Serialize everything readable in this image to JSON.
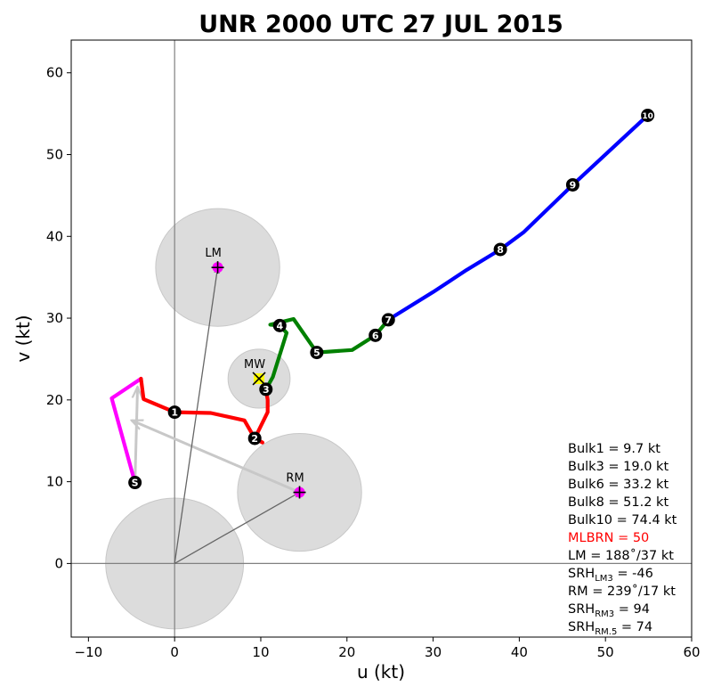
{
  "chart_data": {
    "type": "line",
    "title": "UNR 2000 UTC 27 JUL 2015",
    "xlabel": "u (kt)",
    "ylabel": "v (kt)",
    "xlim": [
      -12,
      60
    ],
    "ylim": [
      -9,
      64
    ],
    "xticks": [
      -10,
      0,
      10,
      20,
      30,
      40,
      50,
      60
    ],
    "xtick_labels": [
      "−10",
      "0",
      "10",
      "20",
      "30",
      "40",
      "50",
      "60"
    ],
    "yticks": [
      0,
      10,
      20,
      30,
      40,
      50,
      60
    ],
    "ytick_labels": [
      "0",
      "10",
      "20",
      "30",
      "40",
      "50",
      "60"
    ],
    "grid": false,
    "series": [
      {
        "color": "#ff00ff",
        "values": [
          [
            -4.6,
            9.9
          ],
          [
            -7.3,
            20.2
          ],
          [
            -3.9,
            22.6
          ]
        ]
      },
      {
        "color": "#ff0000",
        "values": [
          [
            -3.9,
            22.6
          ],
          [
            -3.6,
            20.1
          ],
          [
            0.0,
            18.5
          ],
          [
            4.2,
            18.4
          ],
          [
            8.1,
            17.5
          ],
          [
            9.3,
            15.3
          ],
          [
            10.2,
            14.8
          ],
          [
            9.3,
            15.3
          ],
          [
            10.8,
            18.5
          ],
          [
            10.8,
            20.0
          ],
          [
            10.6,
            21.3
          ]
        ]
      },
      {
        "color": "#008000",
        "values": [
          [
            10.6,
            21.3
          ],
          [
            11.4,
            22.8
          ],
          [
            13.0,
            28.2
          ],
          [
            12.2,
            29.1
          ],
          [
            11.1,
            29.2
          ],
          [
            13.8,
            29.9
          ],
          [
            16.5,
            25.8
          ],
          [
            20.6,
            26.1
          ],
          [
            23.3,
            27.9
          ],
          [
            24.8,
            29.8
          ]
        ]
      },
      {
        "color": "#0000ff",
        "values": [
          [
            24.8,
            29.8
          ],
          [
            30.0,
            33.2
          ],
          [
            33.9,
            35.9
          ],
          [
            37.8,
            38.4
          ],
          [
            40.5,
            40.5
          ],
          [
            46.2,
            46.3
          ],
          [
            54.9,
            54.8
          ]
        ]
      }
    ],
    "height_markers": [
      {
        "label": "S",
        "u": -4.6,
        "v": 9.9
      },
      {
        "label": "1",
        "u": 0.0,
        "v": 18.5
      },
      {
        "label": "2",
        "u": 9.3,
        "v": 15.3
      },
      {
        "label": "3",
        "u": 10.6,
        "v": 21.3
      },
      {
        "label": "4",
        "u": 12.2,
        "v": 29.1
      },
      {
        "label": "5",
        "u": 16.5,
        "v": 25.8
      },
      {
        "label": "6",
        "u": 23.3,
        "v": 27.9
      },
      {
        "label": "7",
        "u": 24.8,
        "v": 29.8
      },
      {
        "label": "8",
        "u": 37.8,
        "v": 38.4
      },
      {
        "label": "9",
        "u": 46.2,
        "v": 46.3
      },
      {
        "label": "10",
        "u": 54.9,
        "v": 54.8
      }
    ],
    "circles": [
      {
        "u": 0.0,
        "v": 0.0,
        "r": 8.0
      },
      {
        "u": 5.0,
        "v": 36.2,
        "r": 7.2
      },
      {
        "u": 9.8,
        "v": 22.6,
        "r": 3.6
      },
      {
        "u": 14.5,
        "v": 8.7,
        "r": 7.2
      }
    ],
    "motion_vectors": [
      {
        "from": [
          0,
          0
        ],
        "to": [
          5.0,
          36.2
        ]
      },
      {
        "from": [
          0,
          0
        ],
        "to": [
          14.5,
          8.7
        ]
      }
    ],
    "shear_vectors": [
      {
        "from": [
          14.5,
          8.7
        ],
        "to": [
          -5.0,
          17.5
        ]
      },
      {
        "from": [
          -4.6,
          9.9
        ],
        "to": [
          -4.3,
          21.6
        ]
      }
    ],
    "storm_points": [
      {
        "label": "LM",
        "u": 5.0,
        "v": 36.2,
        "style": "plus"
      },
      {
        "label": "RM",
        "u": 14.5,
        "v": 8.7,
        "style": "plus"
      },
      {
        "label": "MW",
        "u": 9.8,
        "v": 22.6,
        "style": "x"
      }
    ],
    "params": [
      {
        "text": "Bulk1 = 9.7 kt",
        "color": "#000000"
      },
      {
        "text": "Bulk3 = 19.0 kt",
        "color": "#000000"
      },
      {
        "text": "Bulk6 = 33.2 kt",
        "color": "#000000"
      },
      {
        "text": "Bulk8 = 51.2 kt",
        "color": "#000000"
      },
      {
        "text": "Bulk10 = 74.4 kt",
        "color": "#000000"
      },
      {
        "text": "MLBRN = 50",
        "color": "#ff0000"
      },
      {
        "text": "LM = 188˚/37 kt",
        "color": "#000000"
      },
      {
        "text": "SRH",
        "sub": "LM3",
        "rest": " = -46",
        "color": "#000000"
      },
      {
        "text": "RM = 239˚/17 kt",
        "color": "#000000"
      },
      {
        "text": "SRH",
        "sub": "RM3",
        "rest": " = 94",
        "color": "#000000"
      },
      {
        "text": "SRH",
        "sub": "RM.5",
        "rest": " = 74",
        "color": "#000000"
      }
    ]
  }
}
